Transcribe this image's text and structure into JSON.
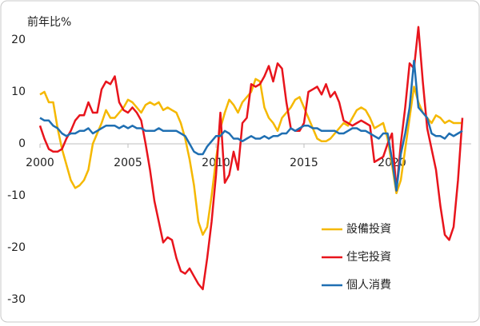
{
  "chart_data": {
    "type": "line",
    "ylabel": "前年比%",
    "x": [
      2000,
      2000.25,
      2000.5,
      2000.75,
      2001,
      2001.25,
      2001.5,
      2001.75,
      2002,
      2002.25,
      2002.5,
      2002.75,
      2003,
      2003.25,
      2003.5,
      2003.75,
      2004,
      2004.25,
      2004.5,
      2004.75,
      2005,
      2005.25,
      2005.5,
      2005.75,
      2006,
      2006.25,
      2006.5,
      2006.75,
      2007,
      2007.25,
      2007.5,
      2007.75,
      2008,
      2008.25,
      2008.5,
      2008.75,
      2009,
      2009.25,
      2009.5,
      2009.75,
      2010,
      2010.25,
      2010.5,
      2010.75,
      2011,
      2011.25,
      2011.5,
      2011.75,
      2012,
      2012.25,
      2012.5,
      2012.75,
      2013,
      2013.25,
      2013.5,
      2013.75,
      2014,
      2014.25,
      2014.5,
      2014.75,
      2015,
      2015.25,
      2015.5,
      2015.75,
      2016,
      2016.25,
      2016.5,
      2016.75,
      2017,
      2017.25,
      2017.5,
      2017.75,
      2018,
      2018.25,
      2018.5,
      2018.75,
      2019,
      2019.25,
      2019.5,
      2019.75,
      2020,
      2020.25,
      2020.5,
      2020.75,
      2021,
      2021.25,
      2021.5,
      2021.75,
      2022,
      2022.25,
      2022.5,
      2022.75,
      2023,
      2023.25,
      2023.5,
      2023.75,
      2024
    ],
    "series": [
      {
        "name": "設備投資",
        "color": "#f5b800",
        "values": [
          9.5,
          10,
          8,
          8,
          3,
          -1,
          -4,
          -7,
          -8.5,
          -8,
          -7,
          -5,
          0,
          2,
          4,
          6.5,
          5,
          5,
          6,
          7,
          8.5,
          8,
          7,
          6,
          7.5,
          8,
          7.5,
          8,
          6.5,
          7,
          6.5,
          6,
          4,
          1,
          -3,
          -8,
          -15,
          -17.5,
          -16,
          -10,
          -3,
          3,
          6,
          8.5,
          7.5,
          6,
          8,
          9,
          10,
          12.5,
          12,
          7,
          5,
          4,
          2.5,
          5,
          6,
          7,
          8.5,
          9,
          7,
          5,
          3,
          1,
          0.5,
          0.5,
          1,
          2,
          3,
          4,
          3.5,
          5,
          6.5,
          7,
          6.5,
          5,
          3,
          3.5,
          4,
          1,
          -4,
          -9.5,
          -7,
          -1,
          5,
          11,
          8,
          6,
          5,
          4,
          5.5,
          5,
          4,
          4.5,
          4,
          4,
          4
        ]
      },
      {
        "name": "住宅投資",
        "color": "#e8141c",
        "values": [
          3.5,
          1,
          -1,
          -1.5,
          -1.5,
          -1,
          1,
          2.5,
          4.5,
          5.5,
          5.5,
          8,
          6,
          6,
          10.5,
          12,
          11.5,
          13,
          8,
          6.5,
          6,
          7,
          6,
          4.5,
          0,
          -5,
          -11,
          -15,
          -19,
          -18,
          -18.5,
          -22,
          -24.5,
          -25,
          -24,
          -25.5,
          -27,
          -28,
          -22,
          -15,
          -6,
          6,
          -7.5,
          -6,
          -1.5,
          -5,
          4,
          5,
          11.5,
          11,
          11.5,
          13,
          15,
          12,
          15.5,
          14.5,
          8,
          3,
          2.5,
          2.5,
          4,
          10,
          10.5,
          11,
          9.5,
          11.5,
          9,
          10,
          8,
          4.5,
          4,
          3.5,
          4,
          4.5,
          4,
          3.5,
          -3.5,
          -3,
          -2.5,
          0,
          2,
          -9,
          0,
          7,
          15.5,
          14.5,
          22.5,
          12,
          3,
          -1,
          -5,
          -12,
          -17.5,
          -18.5,
          -16,
          -7,
          5
        ]
      },
      {
        "name": "個人消費",
        "color": "#1f6fb2",
        "values": [
          5,
          4.5,
          4.5,
          3.5,
          3,
          2,
          1.5,
          2,
          2,
          2.5,
          2.5,
          3,
          2,
          2.5,
          3,
          3.5,
          3.5,
          3.5,
          3,
          3.5,
          3,
          3.5,
          3,
          3,
          2.5,
          2.5,
          2.5,
          3,
          2.5,
          2.5,
          2.5,
          2.5,
          2,
          1.5,
          0,
          -1.5,
          -2,
          -2,
          -0.5,
          0.5,
          1.5,
          1.5,
          2.5,
          2,
          1,
          1,
          0.5,
          1,
          1.5,
          1,
          1,
          1.5,
          1,
          1.5,
          1.5,
          2,
          2,
          3,
          2.5,
          3,
          3.5,
          3.5,
          3,
          3,
          2.5,
          2.5,
          2.5,
          2.5,
          2,
          2,
          2.5,
          3,
          3,
          2.5,
          2.5,
          2,
          1.5,
          1,
          2,
          2,
          -3,
          -9,
          -2,
          2,
          7,
          16,
          7,
          6,
          5,
          2,
          1.5,
          1.5,
          1,
          2,
          1.5,
          2,
          2.5
        ]
      }
    ],
    "xlim": [
      2000,
      2024.5
    ],
    "xticks": [
      2000,
      2005,
      2010,
      2015,
      2020
    ],
    "ylim": [
      -30,
      20
    ],
    "yticks": [
      20,
      10,
      0,
      -10,
      -20,
      -30
    ]
  }
}
